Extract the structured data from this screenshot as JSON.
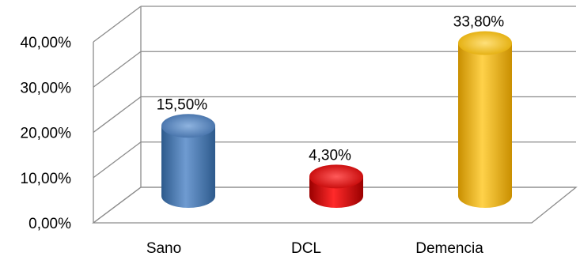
{
  "chart_data": {
    "type": "bar",
    "style": "3d-cylinder",
    "categories": [
      "Sano",
      "DCL",
      "Demencia"
    ],
    "values": [
      15.5,
      4.3,
      33.8
    ],
    "data_labels": [
      "15,50%",
      "4,30%",
      "33,80%"
    ],
    "ylim": [
      0,
      40
    ],
    "yticks": [
      0,
      10,
      20,
      30,
      40
    ],
    "ytick_labels": [
      "0,00%",
      "10,00%",
      "20,00%",
      "30,00%",
      "40,00%"
    ],
    "grid": true,
    "legend": "none",
    "title": "",
    "xlabel": "",
    "ylabel": "",
    "colors": [
      "#4f81bd",
      "#e00000",
      "#f5b800"
    ]
  }
}
